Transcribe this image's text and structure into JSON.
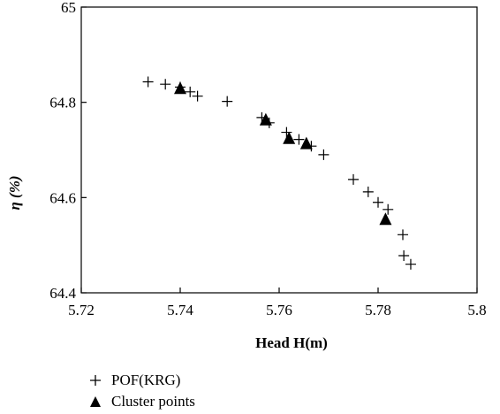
{
  "chart_data": {
    "type": "scatter",
    "title": "",
    "xlabel": "Head H(m)",
    "ylabel": "η (%)",
    "xlim": [
      5.72,
      5.8
    ],
    "ylim": [
      64.4,
      65
    ],
    "xticks": [
      "5.72",
      "5.74",
      "5.76",
      "5.78",
      "5.8"
    ],
    "yticks": [
      "64.4",
      "64.6",
      "64.8",
      "65"
    ],
    "grid": false,
    "legend_position": "bottom-left",
    "series": [
      {
        "name": "POF(KRG)",
        "marker": "plus",
        "points": [
          [
            5.7335,
            64.843
          ],
          [
            5.737,
            64.838
          ],
          [
            5.74,
            64.832
          ],
          [
            5.742,
            64.822
          ],
          [
            5.7435,
            64.813
          ],
          [
            5.7495,
            64.802
          ],
          [
            5.7565,
            64.768
          ],
          [
            5.758,
            64.757
          ],
          [
            5.7615,
            64.737
          ],
          [
            5.764,
            64.722
          ],
          [
            5.7665,
            64.708
          ],
          [
            5.769,
            64.69
          ],
          [
            5.775,
            64.638
          ],
          [
            5.778,
            64.612
          ],
          [
            5.78,
            64.59
          ],
          [
            5.782,
            64.575
          ],
          [
            5.785,
            64.522
          ],
          [
            5.7852,
            64.478
          ],
          [
            5.7866,
            64.46
          ]
        ]
      },
      {
        "name": "Cluster points",
        "marker": "triangle",
        "points": [
          [
            5.74,
            64.828
          ],
          [
            5.7573,
            64.762
          ],
          [
            5.762,
            64.723
          ],
          [
            5.7655,
            64.712
          ],
          [
            5.7815,
            64.553
          ]
        ]
      }
    ]
  }
}
